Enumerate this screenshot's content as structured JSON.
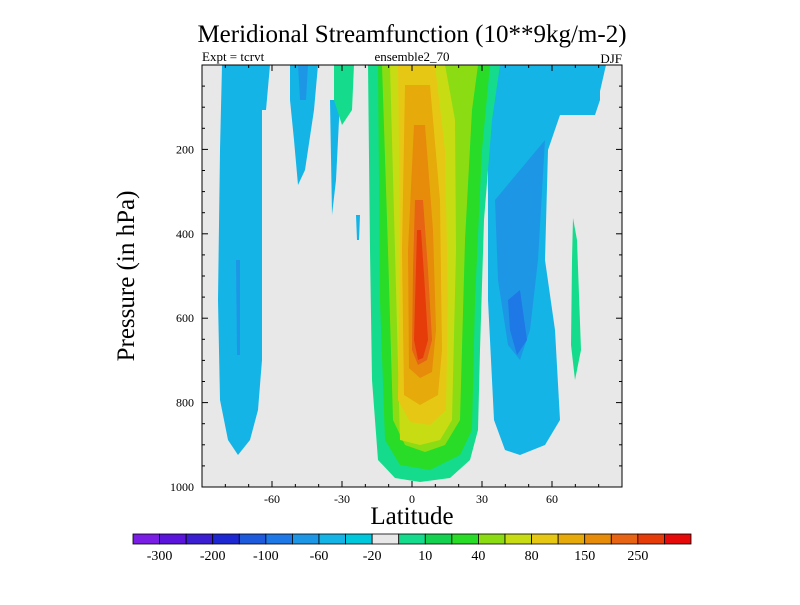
{
  "chart_data": {
    "type": "heatmap",
    "title": "Meridional Streamfunction (10**9kg/m-2)",
    "subtitle_left": "Expt = tcrvt",
    "subtitle_center": "ensemble2_70",
    "subtitle_right": "DJF",
    "xlabel": "Latitude",
    "ylabel": "Pressure (in hPa)",
    "xlim": [
      -90,
      90
    ],
    "ylim": [
      0,
      1000
    ],
    "x_ticks": [
      -60,
      -30,
      0,
      30,
      60
    ],
    "y_ticks": [
      200,
      400,
      600,
      800,
      1000
    ],
    "colorbar_labels": [
      "-300",
      "-200",
      "-100",
      "-60",
      "-20",
      "10",
      "40",
      "80",
      "150",
      "250"
    ],
    "colorbar_colors": [
      "#7a1ee6",
      "#5a14dc",
      "#3c1ed2",
      "#1e28d2",
      "#1e5adc",
      "#1e78e6",
      "#1e96e6",
      "#14b4e6",
      "#00c8dc",
      "#e8e8e8",
      "#14dc8c",
      "#14d250",
      "#28dc28",
      "#8cdc14",
      "#c8dc14",
      "#e6c814",
      "#e6aa0a",
      "#e68c0a",
      "#e66414",
      "#e63c0a",
      "#e60a0a"
    ],
    "fill_colors": {
      "background": "#e8e8e8",
      "cyan": "#14b4e6",
      "light_blue": "#1e96e6",
      "blue": "#1e78e6",
      "teal": "#14dc8c",
      "green": "#28dc28",
      "lime": "#8cdc14",
      "yellow_green": "#c8dc14",
      "yellow": "#e6c814",
      "gold": "#e6aa0a",
      "orange": "#e68c0a",
      "dark_orange": "#e66414",
      "red_orange": "#e63c0a"
    }
  }
}
